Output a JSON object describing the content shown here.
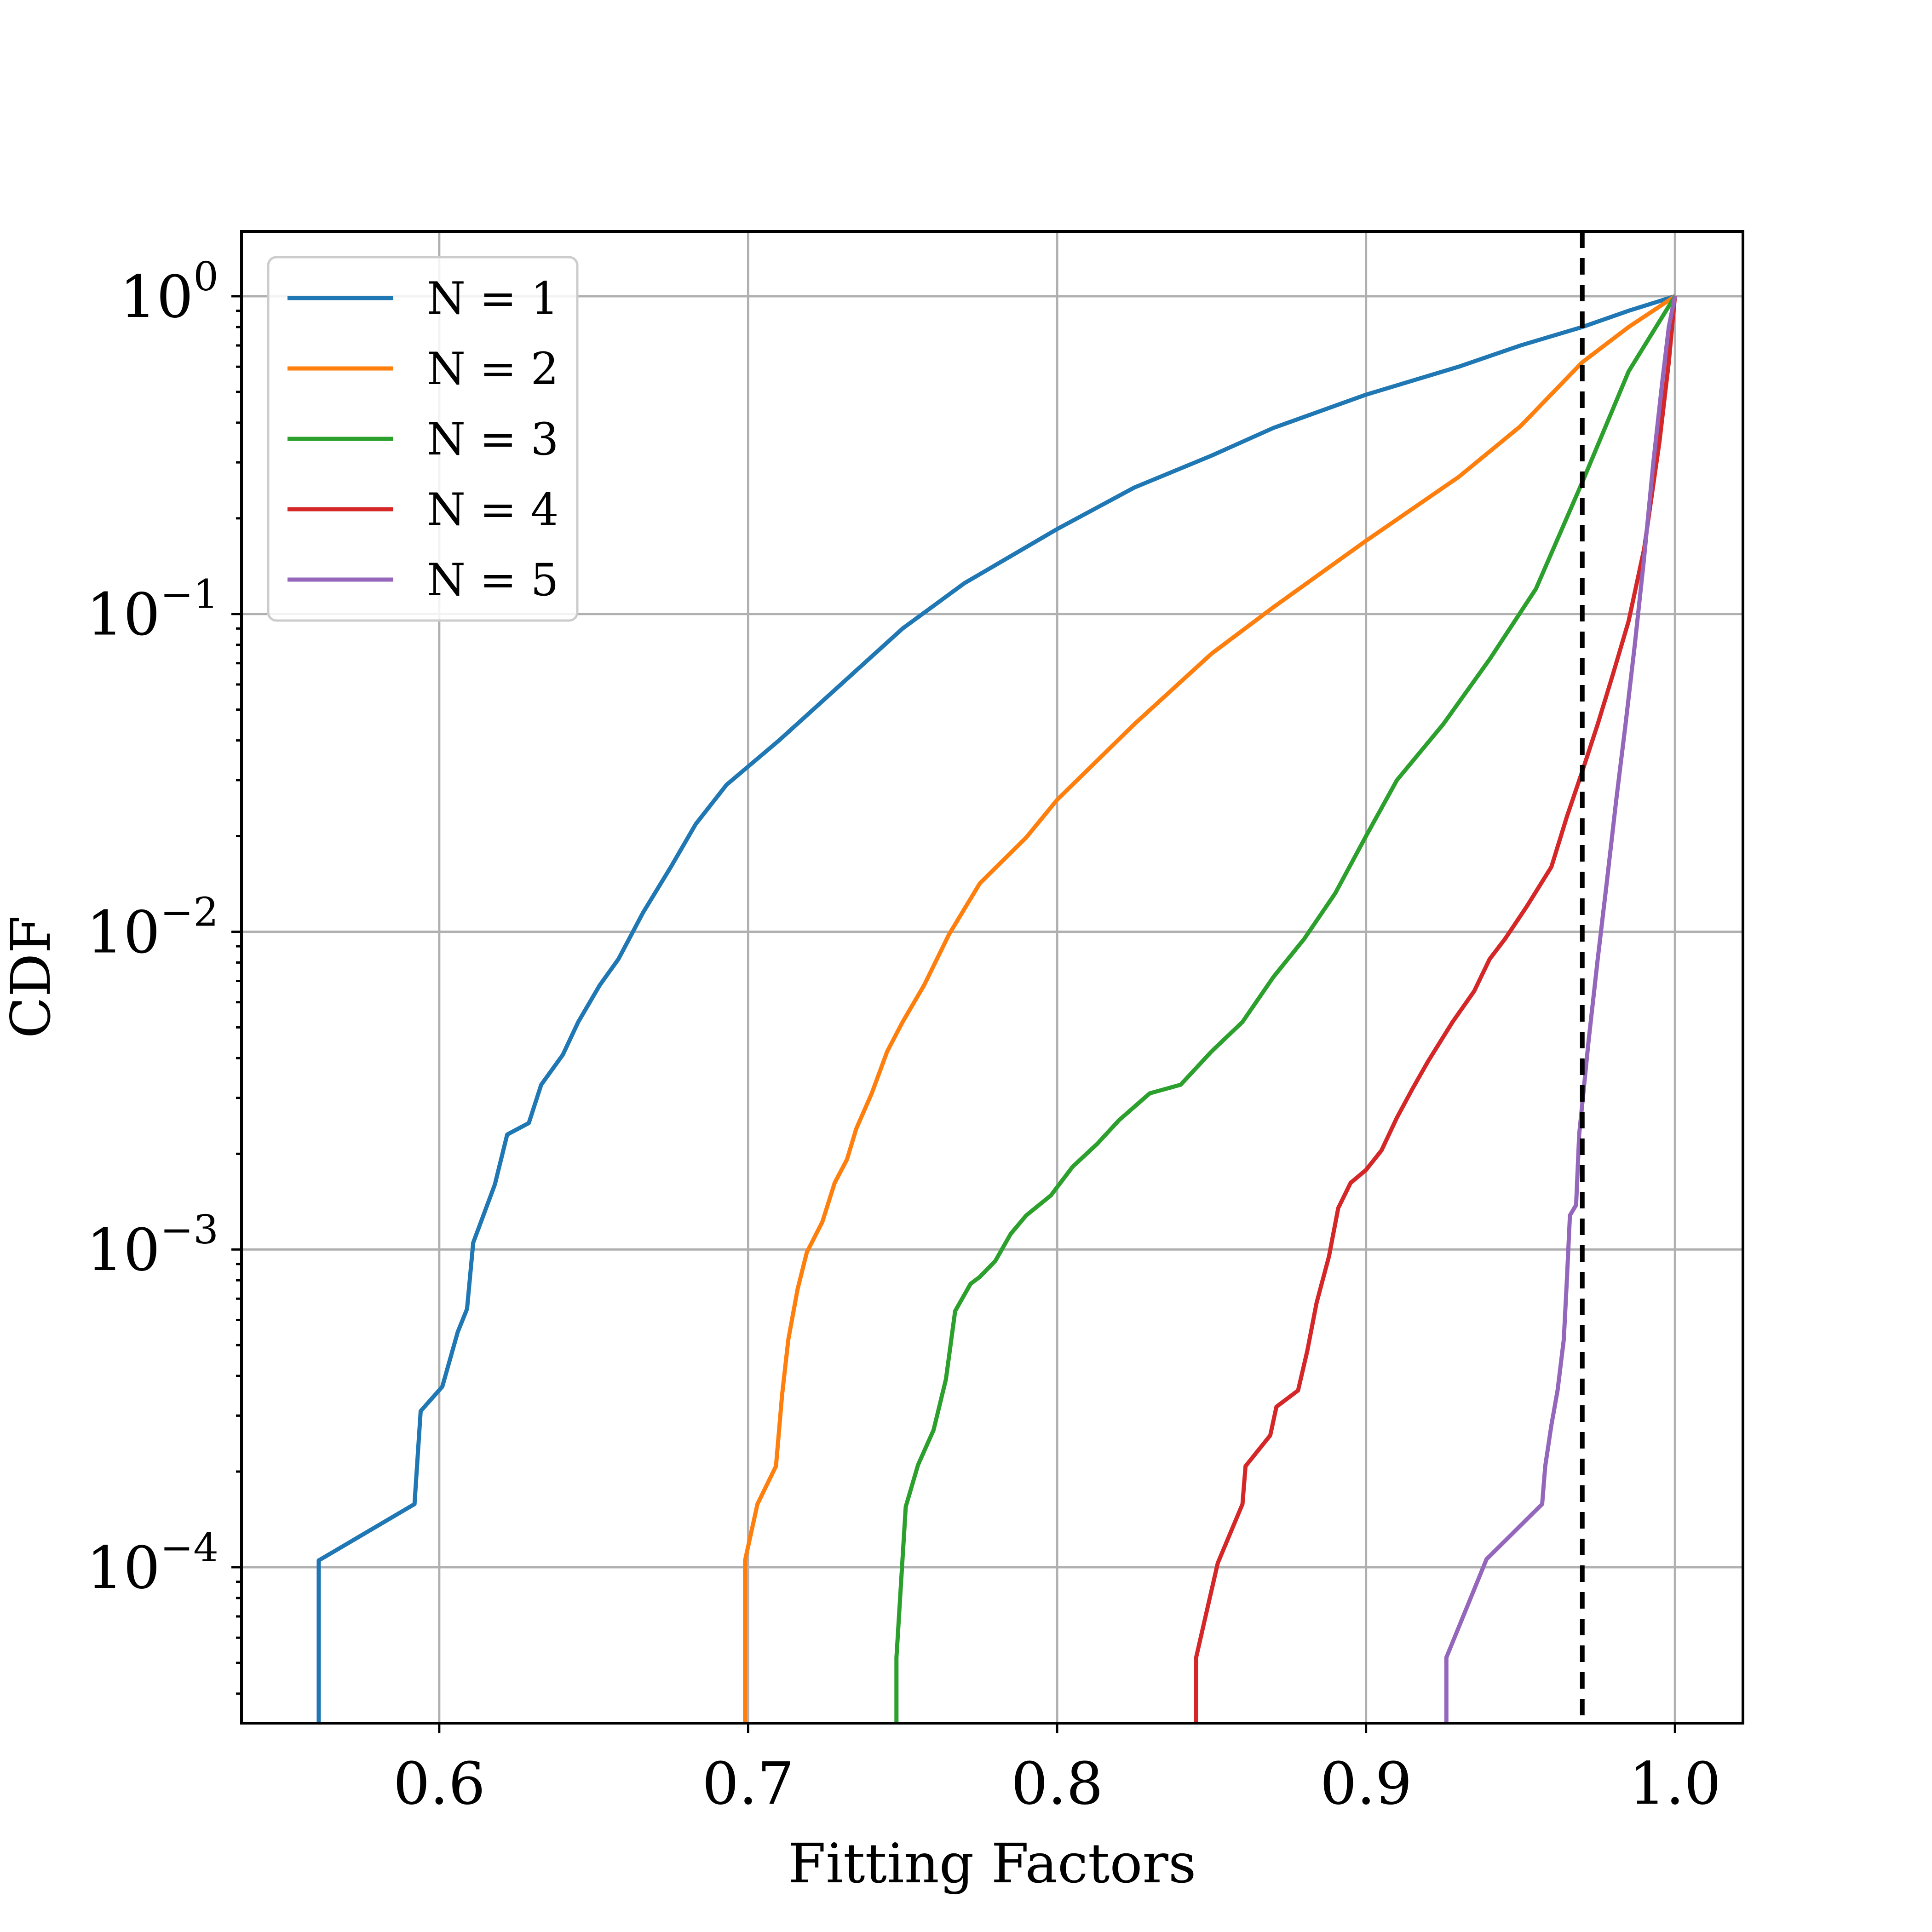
{
  "chart_data": {
    "type": "line",
    "xlabel": "Fitting Factors",
    "ylabel": "CDF",
    "xlim": [
      0.536,
      1.022
    ],
    "ylim": [
      3.23e-05,
      1.6
    ],
    "yscale": "log",
    "grid": true,
    "legend_position": "top-left",
    "x_ticks": [
      {
        "value": 0.6,
        "label": "0.6"
      },
      {
        "value": 0.7,
        "label": "0.7"
      },
      {
        "value": 0.8,
        "label": "0.8"
      },
      {
        "value": 0.9,
        "label": "0.9"
      },
      {
        "value": 1.0,
        "label": "1.0"
      }
    ],
    "y_ticks": [
      {
        "value": 1,
        "base": "10",
        "exp": "0"
      },
      {
        "value": 0.1,
        "base": "10",
        "exp": "−1"
      },
      {
        "value": 0.01,
        "base": "10",
        "exp": "−2"
      },
      {
        "value": 0.001,
        "base": "10",
        "exp": "−3"
      },
      {
        "value": 0.0001,
        "base": "10",
        "exp": "−4"
      }
    ],
    "reference_line": {
      "x": 0.97,
      "color": "#000000",
      "style": "dashed"
    },
    "series": [
      {
        "name": "N = 1",
        "color": "#1f77b4",
        "points": [
          [
            0.561,
            3.23e-05
          ],
          [
            0.561,
            0.000105
          ],
          [
            0.592,
            0.000158
          ],
          [
            0.594,
            0.00031
          ],
          [
            0.601,
            0.00037
          ],
          [
            0.606,
            0.00055
          ],
          [
            0.609,
            0.00065
          ],
          [
            0.611,
            0.00105
          ],
          [
            0.618,
            0.0016
          ],
          [
            0.622,
            0.0023
          ],
          [
            0.629,
            0.0025
          ],
          [
            0.633,
            0.0033
          ],
          [
            0.64,
            0.0041
          ],
          [
            0.645,
            0.0052
          ],
          [
            0.652,
            0.0068
          ],
          [
            0.658,
            0.0082
          ],
          [
            0.666,
            0.0115
          ],
          [
            0.675,
            0.016
          ],
          [
            0.683,
            0.0218
          ],
          [
            0.693,
            0.029
          ],
          [
            0.71,
            0.04
          ],
          [
            0.73,
            0.06
          ],
          [
            0.75,
            0.09
          ],
          [
            0.77,
            0.125
          ],
          [
            0.8,
            0.185
          ],
          [
            0.825,
            0.25
          ],
          [
            0.85,
            0.315
          ],
          [
            0.87,
            0.385
          ],
          [
            0.9,
            0.49
          ],
          [
            0.93,
            0.6
          ],
          [
            0.95,
            0.7
          ],
          [
            0.97,
            0.8
          ],
          [
            0.985,
            0.9
          ],
          [
            1.0,
            1.0
          ]
        ]
      },
      {
        "name": "N = 2",
        "color": "#ff7f0e",
        "points": [
          [
            0.699,
            3.23e-05
          ],
          [
            0.699,
            0.000105
          ],
          [
            0.703,
            0.000158
          ],
          [
            0.709,
            0.000208
          ],
          [
            0.711,
            0.00035
          ],
          [
            0.713,
            0.00052
          ],
          [
            0.716,
            0.00075
          ],
          [
            0.719,
            0.00098
          ],
          [
            0.724,
            0.00122
          ],
          [
            0.728,
            0.00162
          ],
          [
            0.732,
            0.00192
          ],
          [
            0.735,
            0.0024
          ],
          [
            0.74,
            0.0031
          ],
          [
            0.745,
            0.0042
          ],
          [
            0.75,
            0.0052
          ],
          [
            0.757,
            0.0068
          ],
          [
            0.765,
            0.0098
          ],
          [
            0.775,
            0.0142
          ],
          [
            0.79,
            0.0198
          ],
          [
            0.8,
            0.026
          ],
          [
            0.825,
            0.045
          ],
          [
            0.85,
            0.075
          ],
          [
            0.87,
            0.105
          ],
          [
            0.9,
            0.17
          ],
          [
            0.93,
            0.27
          ],
          [
            0.95,
            0.39
          ],
          [
            0.97,
            0.62
          ],
          [
            0.985,
            0.8
          ],
          [
            1.0,
            1.0
          ]
        ]
      },
      {
        "name": "N = 3",
        "color": "#2ca02c",
        "points": [
          [
            0.748,
            3.23e-05
          ],
          [
            0.748,
            5.2e-05
          ],
          [
            0.751,
            0.000155
          ],
          [
            0.755,
            0.00021
          ],
          [
            0.76,
            0.00027
          ],
          [
            0.764,
            0.00039
          ],
          [
            0.767,
            0.00064
          ],
          [
            0.772,
            0.00078
          ],
          [
            0.775,
            0.00082
          ],
          [
            0.78,
            0.00092
          ],
          [
            0.785,
            0.00112
          ],
          [
            0.79,
            0.00128
          ],
          [
            0.798,
            0.00148
          ],
          [
            0.805,
            0.00182
          ],
          [
            0.813,
            0.00215
          ],
          [
            0.82,
            0.00255
          ],
          [
            0.83,
            0.0031
          ],
          [
            0.84,
            0.0033
          ],
          [
            0.85,
            0.0042
          ],
          [
            0.86,
            0.0052
          ],
          [
            0.87,
            0.0072
          ],
          [
            0.88,
            0.0095
          ],
          [
            0.89,
            0.0132
          ],
          [
            0.9,
            0.02
          ],
          [
            0.91,
            0.03
          ],
          [
            0.925,
            0.045
          ],
          [
            0.94,
            0.072
          ],
          [
            0.955,
            0.12
          ],
          [
            0.97,
            0.26
          ],
          [
            0.985,
            0.58
          ],
          [
            1.0,
            1.0
          ]
        ]
      },
      {
        "name": "N = 4",
        "color": "#d62728",
        "points": [
          [
            0.845,
            3.23e-05
          ],
          [
            0.845,
            5.2e-05
          ],
          [
            0.852,
            0.000103
          ],
          [
            0.86,
            0.000158
          ],
          [
            0.861,
            0.000208
          ],
          [
            0.869,
            0.00026
          ],
          [
            0.871,
            0.00032
          ],
          [
            0.878,
            0.00036
          ],
          [
            0.881,
            0.00048
          ],
          [
            0.884,
            0.00068
          ],
          [
            0.888,
            0.00095
          ],
          [
            0.891,
            0.00135
          ],
          [
            0.895,
            0.00162
          ],
          [
            0.9,
            0.00178
          ],
          [
            0.905,
            0.00205
          ],
          [
            0.91,
            0.0026
          ],
          [
            0.915,
            0.0032
          ],
          [
            0.92,
            0.0039
          ],
          [
            0.928,
            0.0052
          ],
          [
            0.935,
            0.0065
          ],
          [
            0.94,
            0.0082
          ],
          [
            0.945,
            0.0095
          ],
          [
            0.952,
            0.012
          ],
          [
            0.96,
            0.016
          ],
          [
            0.965,
            0.023
          ],
          [
            0.97,
            0.032
          ],
          [
            0.975,
            0.045
          ],
          [
            0.98,
            0.065
          ],
          [
            0.985,
            0.095
          ],
          [
            0.99,
            0.16
          ],
          [
            0.995,
            0.35
          ],
          [
            0.998,
            0.62
          ],
          [
            1.0,
            1.0
          ]
        ]
      },
      {
        "name": "N = 5",
        "color": "#9467bd",
        "points": [
          [
            0.926,
            3.23e-05
          ],
          [
            0.926,
            5.2e-05
          ],
          [
            0.939,
            0.000106
          ],
          [
            0.957,
            0.000158
          ],
          [
            0.958,
            0.000208
          ],
          [
            0.96,
            0.00028
          ],
          [
            0.962,
            0.00036
          ],
          [
            0.964,
            0.00052
          ],
          [
            0.965,
            0.0008
          ],
          [
            0.966,
            0.00128
          ],
          [
            0.968,
            0.00138
          ],
          [
            0.969,
            0.0023
          ],
          [
            0.972,
            0.0045
          ],
          [
            0.975,
            0.0082
          ],
          [
            0.978,
            0.0145
          ],
          [
            0.981,
            0.026
          ],
          [
            0.984,
            0.045
          ],
          [
            0.987,
            0.08
          ],
          [
            0.99,
            0.15
          ],
          [
            0.993,
            0.3
          ],
          [
            0.996,
            0.55
          ],
          [
            0.998,
            0.8
          ],
          [
            1.0,
            1.0
          ]
        ]
      }
    ]
  }
}
